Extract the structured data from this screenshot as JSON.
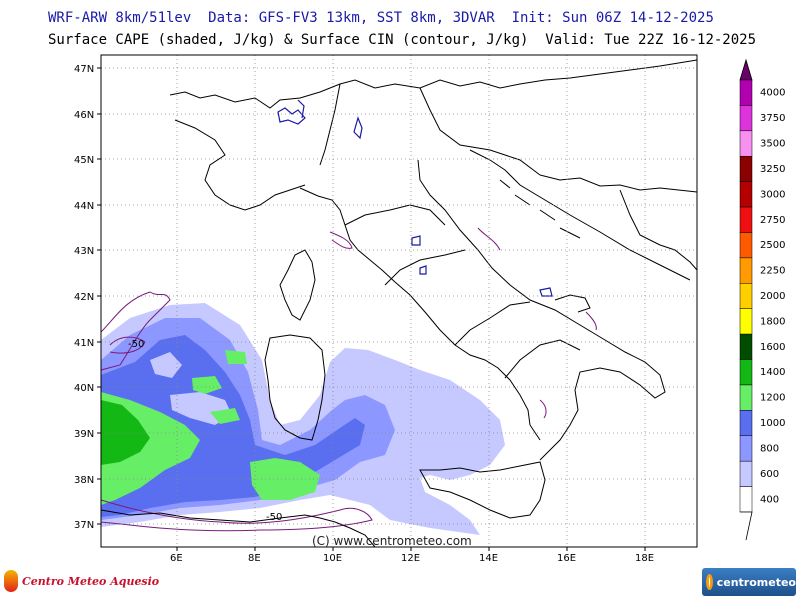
{
  "header": {
    "line1": "WRF-ARW 8km/51lev  Data: GFS-FV3 13km, SST 8km, 3DVAR  Init: Sun 06Z 14-12-2025",
    "line2": "Surface CAPE (shaded, J/kg) & Surface CIN (contour, J/kg)  Valid: Tue 22Z 16-12-2025"
  },
  "map": {
    "lat_labels": [
      "47N",
      "46N",
      "45N",
      "44N",
      "43N",
      "42N",
      "41N",
      "40N",
      "39N",
      "38N",
      "37N"
    ],
    "lon_labels": [
      "6E",
      "8E",
      "10E",
      "12E",
      "14E",
      "16E",
      "18E"
    ],
    "cin_labels": [
      "-50",
      "-50"
    ]
  },
  "colorbar": {
    "levels": [
      {
        "label": "4000",
        "color": "#b000b0"
      },
      {
        "label": "3750",
        "color": "#dd33dd"
      },
      {
        "label": "3500",
        "color": "#f890f0"
      },
      {
        "label": "3250",
        "color": "#8b0000"
      },
      {
        "label": "3000",
        "color": "#b40000"
      },
      {
        "label": "2750",
        "color": "#ee1010"
      },
      {
        "label": "2500",
        "color": "#ff5a00"
      },
      {
        "label": "2250",
        "color": "#ff9a00"
      },
      {
        "label": "2000",
        "color": "#ffcf00"
      },
      {
        "label": "1800",
        "color": "#ffff00"
      },
      {
        "label": "1600",
        "color": "#004d00"
      },
      {
        "label": "1400",
        "color": "#14b814"
      },
      {
        "label": "1200",
        "color": "#66ee66"
      },
      {
        "label": "1000",
        "color": "#5a6ef0"
      },
      {
        "label": "800",
        "color": "#8c98ff"
      },
      {
        "label": "600",
        "color": "#c6c9ff"
      },
      {
        "label": "400",
        "color": "#ffffff"
      }
    ],
    "top_color": "#6a006a"
  },
  "credit": "(C) www.centrometeo.com",
  "logos": {
    "left": "Centro Meteo Aquesio",
    "right": "centrometeo"
  }
}
